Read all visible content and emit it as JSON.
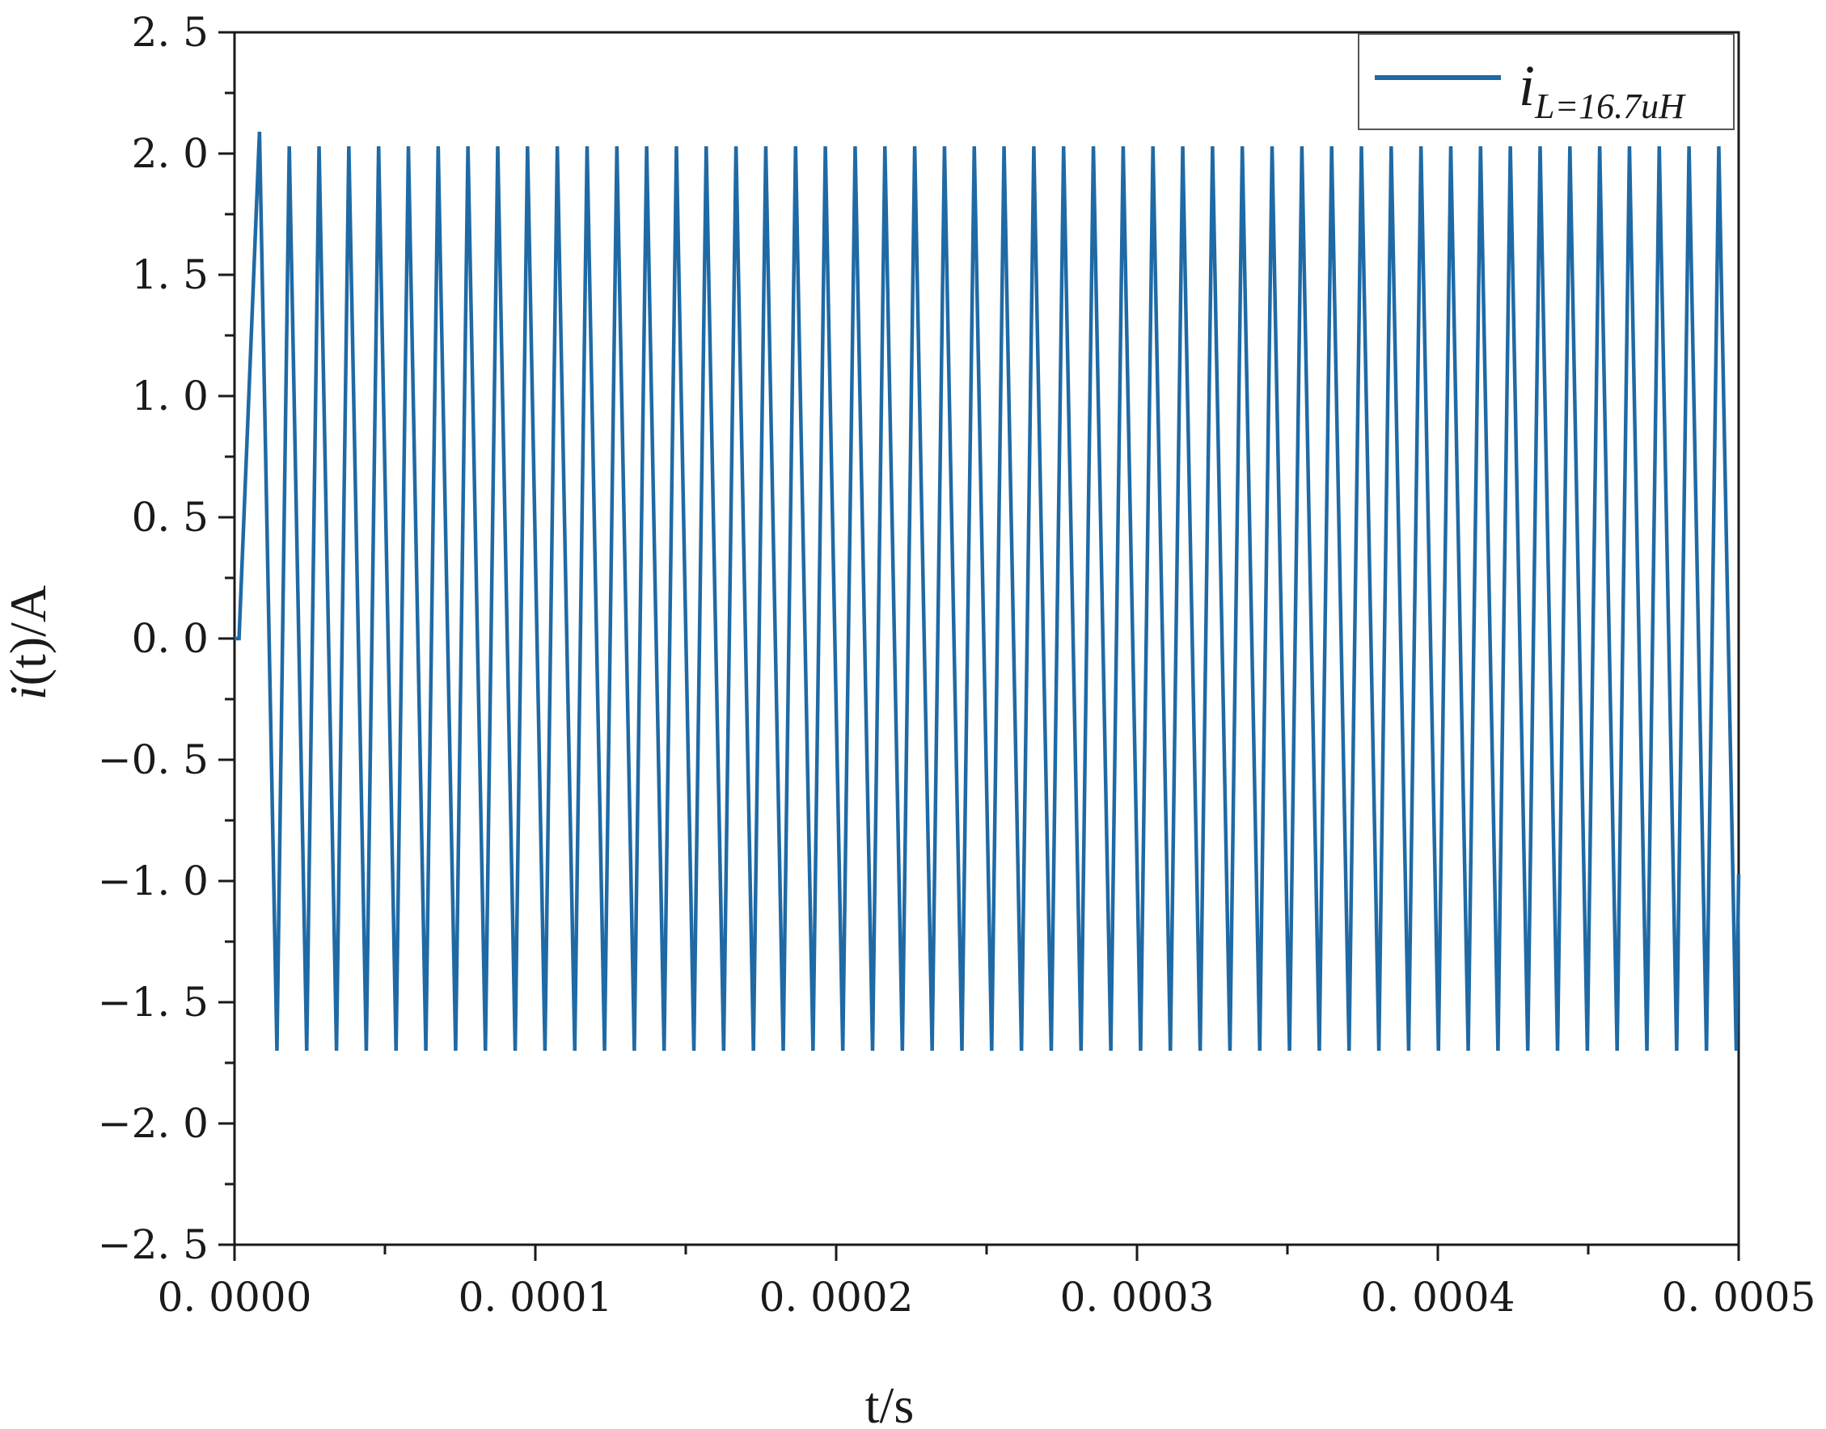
{
  "chart_data": {
    "type": "line",
    "title": "",
    "xlabel": "t/s",
    "ylabel_italic": "i",
    "ylabel_rest": "(t)/A",
    "xlim": [
      0,
      0.0005
    ],
    "ylim": [
      -2.5,
      2.5
    ],
    "x_ticks": [
      0,
      0.0001,
      0.0002,
      0.0003,
      0.0004,
      0.0005
    ],
    "x_tick_labels": [
      "0. 0000",
      "0. 0001",
      "0. 0002",
      "0. 0003",
      "0. 0004",
      "0. 0005"
    ],
    "y_ticks": [
      -2.5,
      -2.0,
      -1.5,
      -1.0,
      -0.5,
      0.0,
      0.5,
      1.0,
      1.5,
      2.0,
      2.5
    ],
    "y_tick_labels": [
      "−2. 5",
      "−2. 0",
      "−1. 5",
      "−1. 0",
      "−0. 5",
      "0. 0",
      "0. 5",
      "1. 0",
      "1. 5",
      "2. 0",
      "2. 5"
    ],
    "grid": false,
    "legend_position": "top-right",
    "legend": {
      "main": "i",
      "subscript": "L=16.7uH"
    },
    "series": [
      {
        "name": "iL=16.7uH",
        "color": "#1f6aa5",
        "description_of_waveform": "triangular oscillation",
        "initial_flat_until_s": 1.5e-06,
        "first_peak": {
          "t": 8.3e-06,
          "i": 2.09
        },
        "period_s": 9.9e-06,
        "steady_max_A": 2.03,
        "steady_min_A": -1.7,
        "rise_time_s": 4.1e-06,
        "fall_time_s": 5.8e-06
      }
    ]
  }
}
